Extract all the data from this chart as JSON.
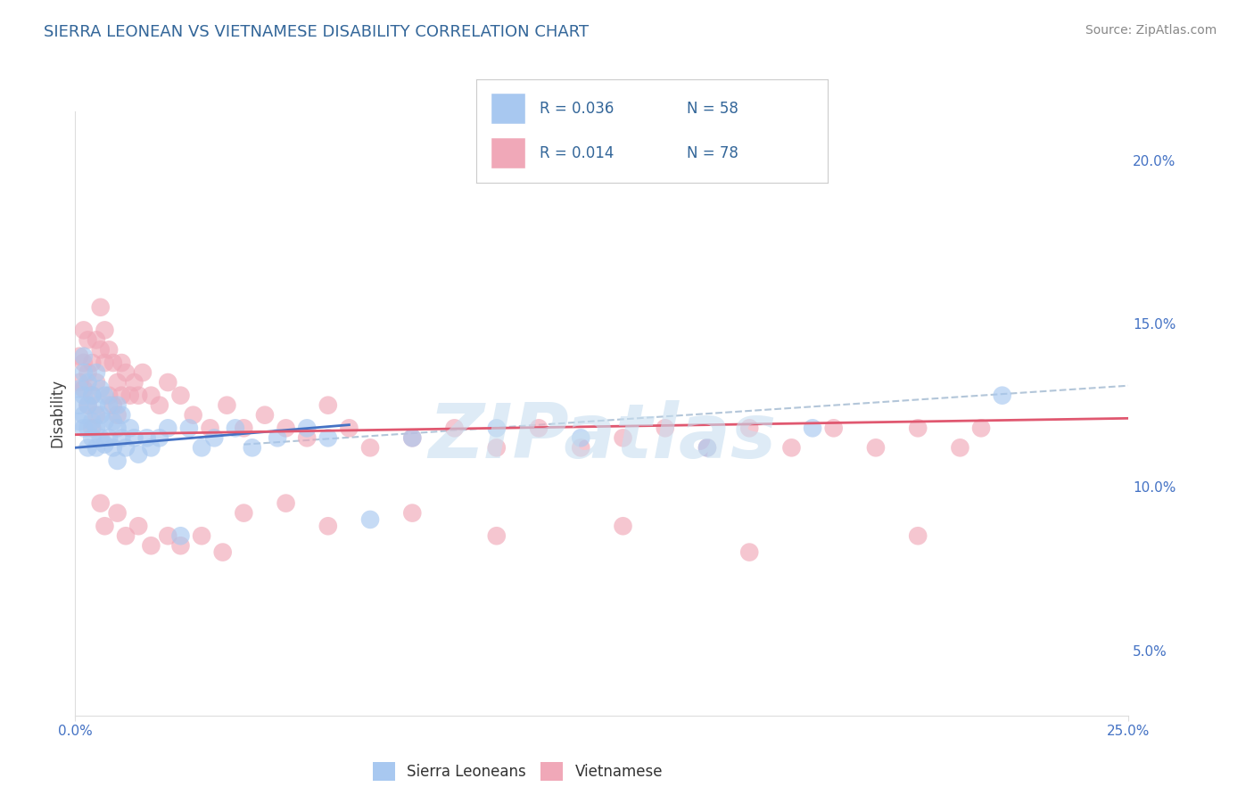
{
  "title": "SIERRA LEONEAN VS VIETNAMESE DISABILITY CORRELATION CHART",
  "source_text": "Source: ZipAtlas.com",
  "ylabel": "Disability",
  "xlim": [
    0.0,
    0.25
  ],
  "ylim": [
    0.03,
    0.215
  ],
  "xticks": [
    0.0,
    0.25
  ],
  "xtick_labels": [
    "0.0%",
    "25.0%"
  ],
  "yticks_right": [
    0.05,
    0.1,
    0.15,
    0.2
  ],
  "ytick_labels_right": [
    "5.0%",
    "10.0%",
    "15.0%",
    "20.0%"
  ],
  "sl_R": "0.036",
  "sl_N": "58",
  "vn_R": "0.014",
  "vn_N": "78",
  "sl_scatter_color": "#a8c8f0",
  "vn_scatter_color": "#f0a8b8",
  "sl_line_color": "#4472c4",
  "vn_line_color": "#e05870",
  "ref_line_color": "#a0b8d0",
  "title_color": "#336699",
  "axis_tick_color": "#4472c4",
  "grid_color": "#cccccc",
  "background_color": "#ffffff",
  "watermark_text": "ZIPatlas",
  "watermark_color": "#c8dff0",
  "source_color": "#888888",
  "legend_label_sl": "Sierra Leoneans",
  "legend_label_vn": "Vietnamese",
  "sl_line_x": [
    0.0,
    0.065
  ],
  "sl_line_y": [
    0.112,
    0.119
  ],
  "vn_line_x": [
    0.0,
    0.25
  ],
  "vn_line_y": [
    0.116,
    0.121
  ],
  "ref_line_x": [
    0.04,
    0.25
  ],
  "ref_line_y": [
    0.113,
    0.131
  ],
  "sl_x": [
    0.001,
    0.001,
    0.001,
    0.002,
    0.002,
    0.002,
    0.002,
    0.002,
    0.003,
    0.003,
    0.003,
    0.003,
    0.004,
    0.004,
    0.004,
    0.005,
    0.005,
    0.005,
    0.005,
    0.006,
    0.006,
    0.006,
    0.007,
    0.007,
    0.007,
    0.008,
    0.008,
    0.009,
    0.009,
    0.01,
    0.01,
    0.01,
    0.011,
    0.011,
    0.012,
    0.013,
    0.014,
    0.015,
    0.017,
    0.018,
    0.02,
    0.022,
    0.025,
    0.027,
    0.03,
    0.033,
    0.038,
    0.042,
    0.048,
    0.055,
    0.06,
    0.07,
    0.08,
    0.1,
    0.12,
    0.15,
    0.175,
    0.22
  ],
  "sl_y": [
    0.13,
    0.125,
    0.12,
    0.14,
    0.135,
    0.128,
    0.122,
    0.118,
    0.132,
    0.125,
    0.118,
    0.112,
    0.128,
    0.12,
    0.115,
    0.135,
    0.125,
    0.118,
    0.112,
    0.13,
    0.122,
    0.115,
    0.128,
    0.12,
    0.113,
    0.125,
    0.115,
    0.12,
    0.112,
    0.125,
    0.118,
    0.108,
    0.122,
    0.115,
    0.112,
    0.118,
    0.115,
    0.11,
    0.115,
    0.112,
    0.115,
    0.118,
    0.085,
    0.118,
    0.112,
    0.115,
    0.118,
    0.112,
    0.115,
    0.118,
    0.115,
    0.09,
    0.115,
    0.118,
    0.115,
    0.112,
    0.118,
    0.128
  ],
  "vn_x": [
    0.001,
    0.001,
    0.002,
    0.002,
    0.002,
    0.003,
    0.003,
    0.003,
    0.004,
    0.004,
    0.004,
    0.005,
    0.005,
    0.005,
    0.006,
    0.006,
    0.007,
    0.007,
    0.008,
    0.008,
    0.009,
    0.009,
    0.01,
    0.01,
    0.011,
    0.011,
    0.012,
    0.013,
    0.014,
    0.015,
    0.016,
    0.018,
    0.02,
    0.022,
    0.025,
    0.028,
    0.032,
    0.036,
    0.04,
    0.045,
    0.05,
    0.055,
    0.06,
    0.065,
    0.07,
    0.08,
    0.09,
    0.1,
    0.11,
    0.12,
    0.13,
    0.14,
    0.15,
    0.16,
    0.17,
    0.18,
    0.19,
    0.2,
    0.21,
    0.215,
    0.006,
    0.007,
    0.01,
    0.012,
    0.015,
    0.018,
    0.022,
    0.025,
    0.03,
    0.035,
    0.04,
    0.05,
    0.06,
    0.08,
    0.1,
    0.13,
    0.16,
    0.2
  ],
  "vn_y": [
    0.14,
    0.132,
    0.148,
    0.138,
    0.13,
    0.145,
    0.135,
    0.125,
    0.138,
    0.128,
    0.118,
    0.145,
    0.132,
    0.122,
    0.155,
    0.142,
    0.148,
    0.138,
    0.142,
    0.128,
    0.138,
    0.125,
    0.132,
    0.122,
    0.138,
    0.128,
    0.135,
    0.128,
    0.132,
    0.128,
    0.135,
    0.128,
    0.125,
    0.132,
    0.128,
    0.122,
    0.118,
    0.125,
    0.118,
    0.122,
    0.118,
    0.115,
    0.125,
    0.118,
    0.112,
    0.115,
    0.118,
    0.112,
    0.118,
    0.112,
    0.115,
    0.118,
    0.112,
    0.118,
    0.112,
    0.118,
    0.112,
    0.118,
    0.112,
    0.118,
    0.095,
    0.088,
    0.092,
    0.085,
    0.088,
    0.082,
    0.085,
    0.082,
    0.085,
    0.08,
    0.092,
    0.095,
    0.088,
    0.092,
    0.085,
    0.088,
    0.08,
    0.085
  ]
}
